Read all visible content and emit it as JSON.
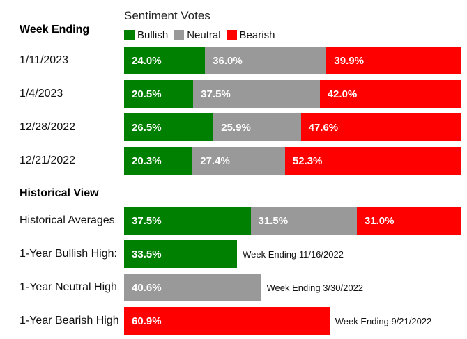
{
  "chart_data": {
    "type": "bar",
    "orientation": "horizontal",
    "stacked": true,
    "legend_title": "Sentiment Votes",
    "legend_placement": "top",
    "series": [
      {
        "name": "Bullish",
        "color": "#008000"
      },
      {
        "name": "Neutral",
        "color": "#999999"
      },
      {
        "name": "Bearish",
        "color": "#ff0000"
      }
    ],
    "weekly": {
      "title": "Week Ending",
      "rows": [
        {
          "label": "1/11/2023",
          "values": [
            24.0,
            36.0,
            39.9
          ],
          "value_labels": [
            "24.0%",
            "36.0%",
            "39.9%"
          ]
        },
        {
          "label": "1/4/2023",
          "values": [
            20.5,
            37.5,
            42.0
          ],
          "value_labels": [
            "20.5%",
            "37.5%",
            "42.0%"
          ]
        },
        {
          "label": "12/28/2022",
          "values": [
            26.5,
            25.9,
            47.6
          ],
          "value_labels": [
            "26.5%",
            "25.9%",
            "47.6%"
          ]
        },
        {
          "label": "12/21/2022",
          "values": [
            20.3,
            27.4,
            52.3
          ],
          "value_labels": [
            "20.3%",
            "27.4%",
            "52.3%"
          ]
        }
      ]
    },
    "historical": {
      "title": "Historical View",
      "averages": {
        "label": "Historical Averages",
        "values": [
          37.5,
          31.5,
          31.0
        ],
        "value_labels": [
          "37.5%",
          "31.5%",
          "31.0%"
        ]
      },
      "highs": [
        {
          "label": "1-Year Bullish High:",
          "series": "Bullish",
          "value": 33.5,
          "value_label": "33.5%",
          "note": "Week Ending 11/16/2022"
        },
        {
          "label": "1-Year Neutral High",
          "series": "Neutral",
          "value": 40.6,
          "value_label": "40.6%",
          "note": "Week Ending 3/30/2022"
        },
        {
          "label": "1-Year Bearish High",
          "series": "Bearish",
          "value": 60.9,
          "value_label": "60.9%",
          "note": "Week Ending 9/21/2022"
        }
      ]
    }
  }
}
